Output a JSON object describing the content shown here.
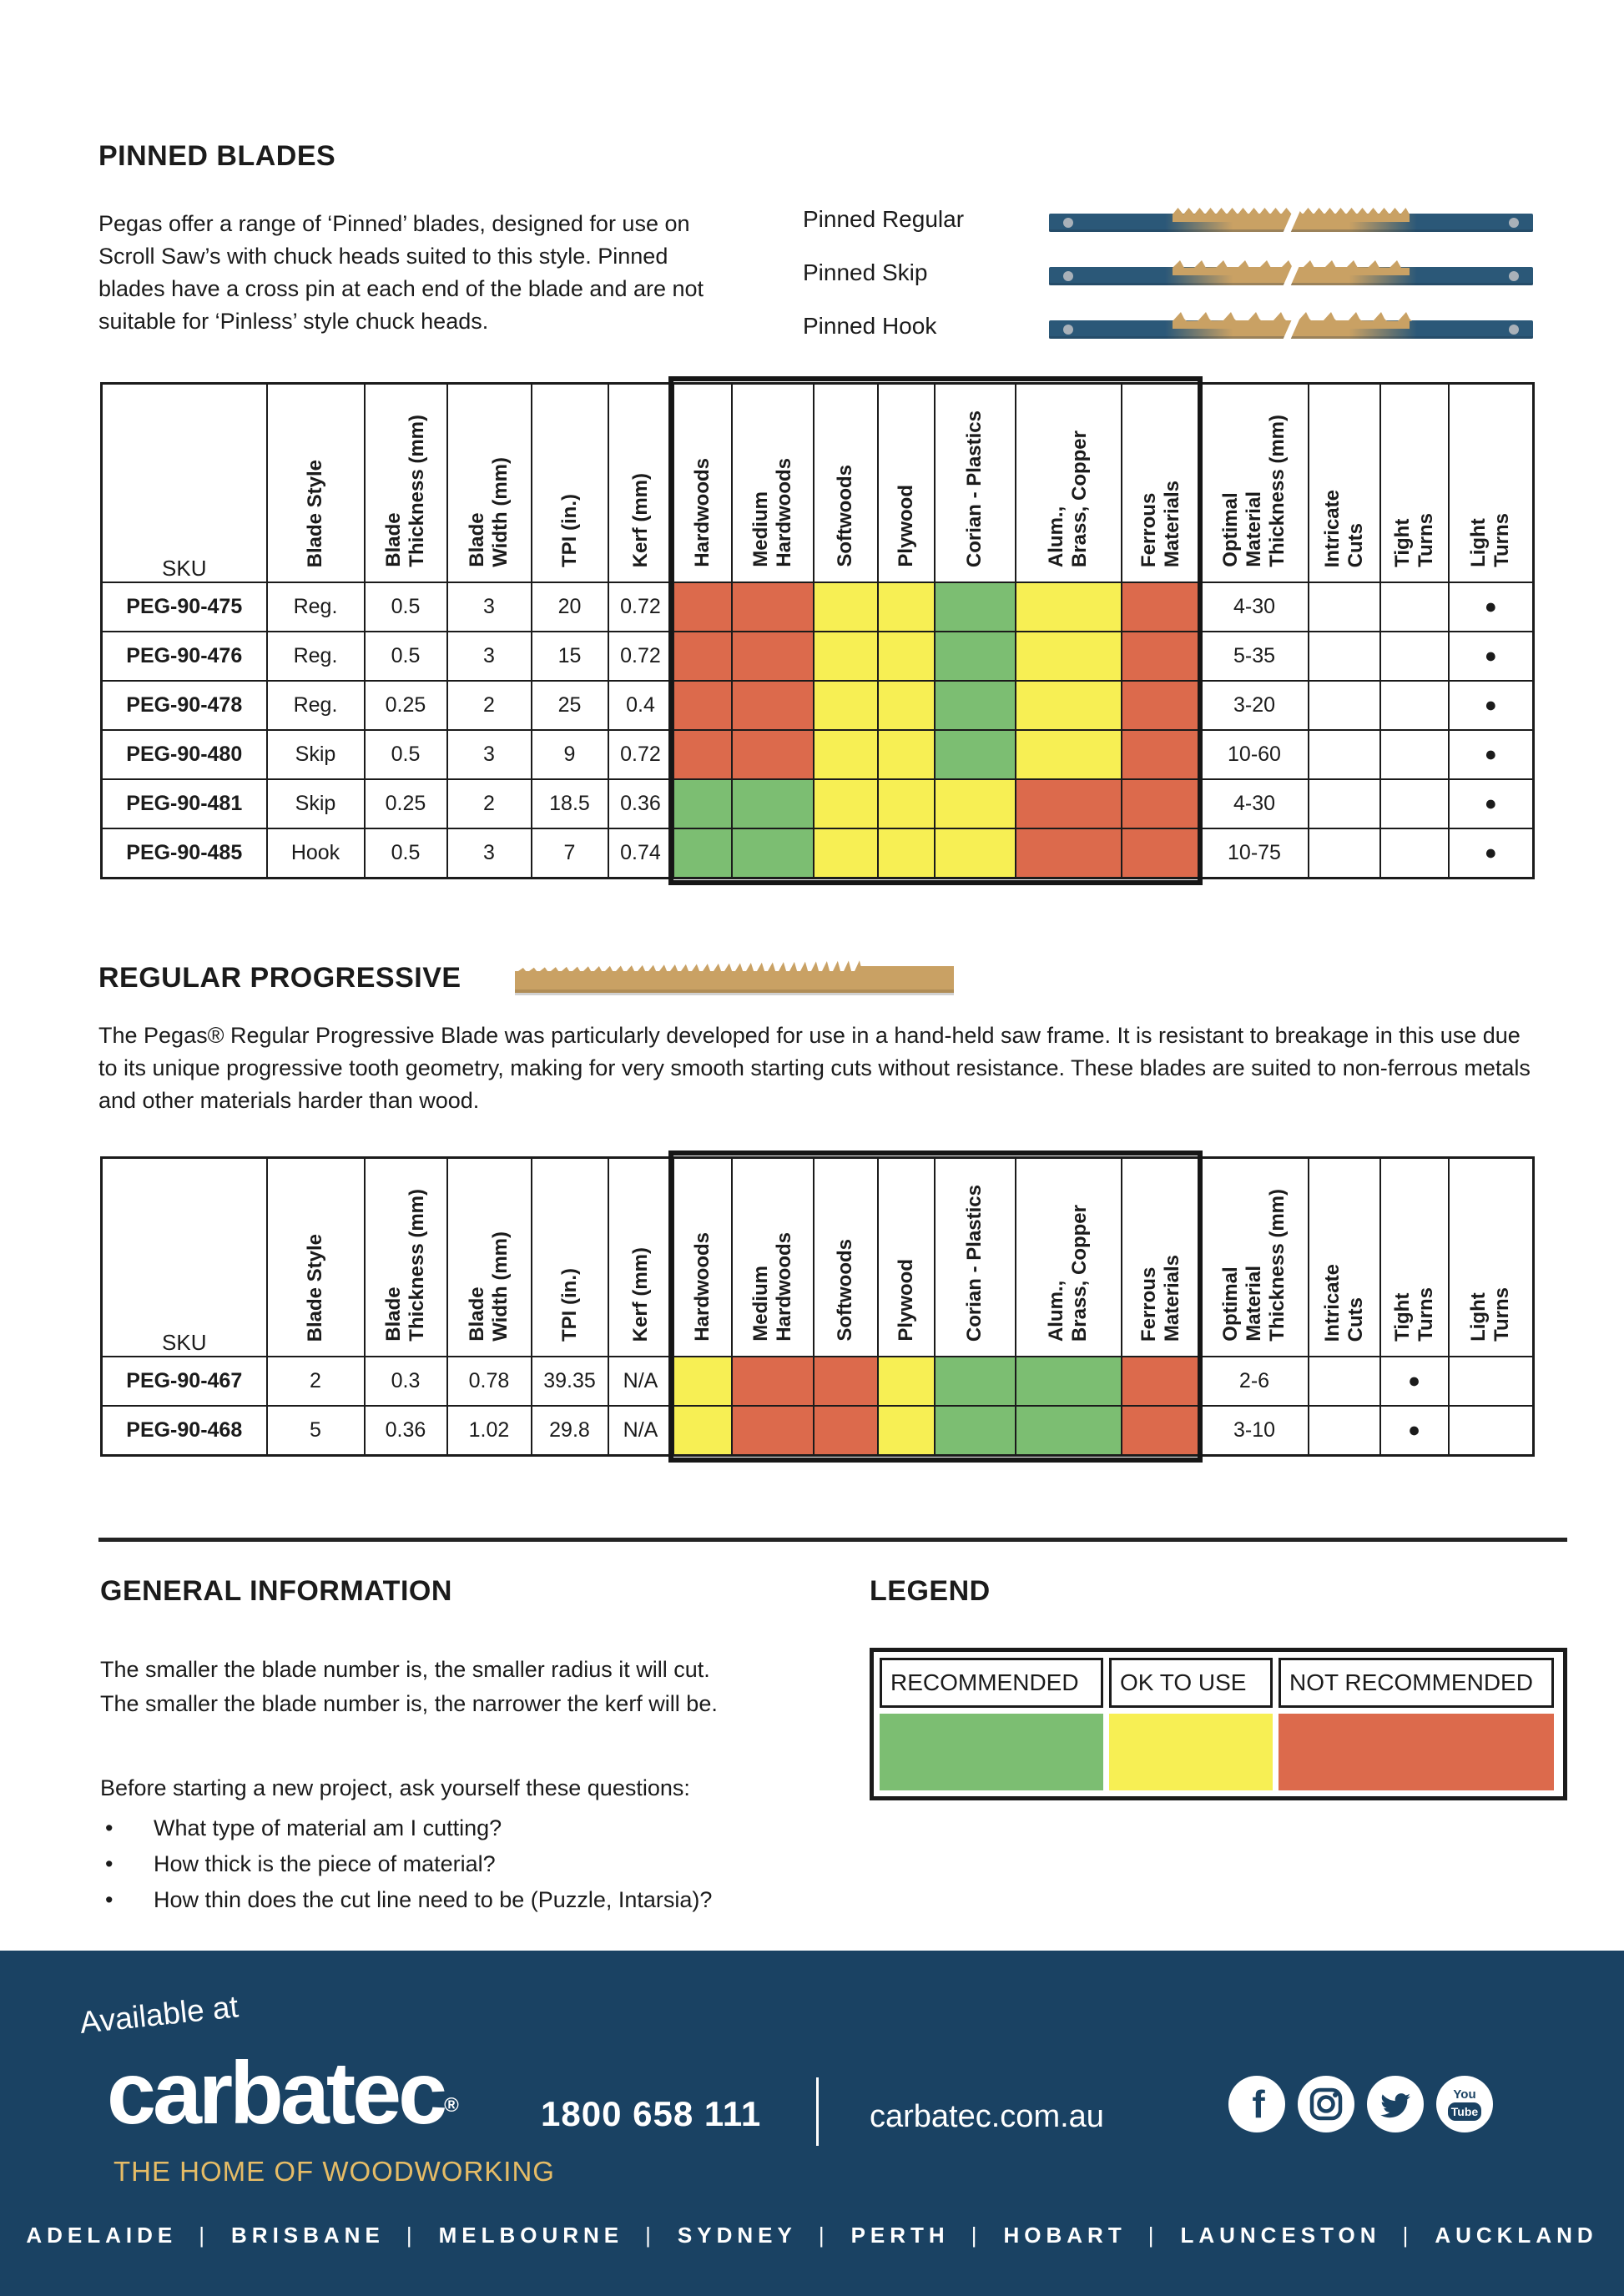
{
  "colors": {
    "rec": "#7cbe72",
    "ok": "#f7ef54",
    "nr": "#dc6a4c",
    "footer_bg": "#1a4263",
    "gold": "#e6bc66",
    "blade_navy": "#2b5878",
    "blade_tan": "#c9a164"
  },
  "pinned": {
    "title": "PINNED BLADES",
    "description": "Pegas offer a range of ‘Pinned’ blades, designed for use on Scroll Saw’s with chuck heads suited to this style. Pinned blades have a cross pin at each end of the blade and are not suitable for ‘Pinless’ style chuck heads.",
    "blade_styles": [
      {
        "label": "Pinned Regular",
        "type": "regular"
      },
      {
        "label": "Pinned Skip",
        "type": "skip"
      },
      {
        "label": "Pinned Hook",
        "type": "hook"
      }
    ]
  },
  "table_columns": [
    "SKU",
    "Blade Style",
    "Blade\nThickness (mm)",
    "Blade\nWidth (mm)",
    "TPI (in.)",
    "Kerf (mm)",
    "Hardwoods",
    "Medium\nHardwoods",
    "Softwoods",
    "Plywood",
    "Corian - Plastics",
    "Alum.,\nBrass, Copper",
    "Ferrous\nMaterials",
    "Optimal\nMaterial\nThickness (mm)",
    "Intricate\nCuts",
    "Tight\nTurns",
    "Light\nTurns"
  ],
  "pinned_table_rows": [
    {
      "sku": "PEG-90-475",
      "style": "Reg.",
      "thickness": "0.5",
      "width": "3",
      "tpi": "20",
      "kerf": "0.72",
      "materials": [
        "nr",
        "nr",
        "ok",
        "ok",
        "rec",
        "ok",
        "nr"
      ],
      "optimal": "4-30",
      "intricate": "",
      "tight": "",
      "light": "●"
    },
    {
      "sku": "PEG-90-476",
      "style": "Reg.",
      "thickness": "0.5",
      "width": "3",
      "tpi": "15",
      "kerf": "0.72",
      "materials": [
        "nr",
        "nr",
        "ok",
        "ok",
        "rec",
        "ok",
        "nr"
      ],
      "optimal": "5-35",
      "intricate": "",
      "tight": "",
      "light": "●"
    },
    {
      "sku": "PEG-90-478",
      "style": "Reg.",
      "thickness": "0.25",
      "width": "2",
      "tpi": "25",
      "kerf": "0.4",
      "materials": [
        "nr",
        "nr",
        "ok",
        "ok",
        "rec",
        "ok",
        "nr"
      ],
      "optimal": "3-20",
      "intricate": "",
      "tight": "",
      "light": "●"
    },
    {
      "sku": "PEG-90-480",
      "style": "Skip",
      "thickness": "0.5",
      "width": "3",
      "tpi": "9",
      "kerf": "0.72",
      "materials": [
        "nr",
        "nr",
        "ok",
        "ok",
        "rec",
        "ok",
        "nr"
      ],
      "optimal": "10-60",
      "intricate": "",
      "tight": "",
      "light": "●"
    },
    {
      "sku": "PEG-90-481",
      "style": "Skip",
      "thickness": "0.25",
      "width": "2",
      "tpi": "18.5",
      "kerf": "0.36",
      "materials": [
        "rec",
        "rec",
        "ok",
        "ok",
        "ok",
        "nr",
        "nr"
      ],
      "optimal": "4-30",
      "intricate": "",
      "tight": "",
      "light": "●"
    },
    {
      "sku": "PEG-90-485",
      "style": "Hook",
      "thickness": "0.5",
      "width": "3",
      "tpi": "7",
      "kerf": "0.74",
      "materials": [
        "rec",
        "rec",
        "ok",
        "ok",
        "ok",
        "nr",
        "nr"
      ],
      "optimal": "10-75",
      "intricate": "",
      "tight": "",
      "light": "●"
    }
  ],
  "progressive": {
    "title": "REGULAR PROGRESSIVE",
    "description": "The Pegas® Regular Progressive Blade was particularly developed for use in a hand-held saw frame. It is resistant to breakage in this use due to its unique progressive tooth geometry, making for very smooth starting cuts without resistance. These blades are suited to non-ferrous metals and other materials harder than wood."
  },
  "progressive_table_rows": [
    {
      "sku": "PEG-90-467",
      "style": "2",
      "thickness": "0.3",
      "width": "0.78",
      "tpi": "39.35",
      "kerf": "N/A",
      "materials": [
        "ok",
        "nr",
        "nr",
        "ok",
        "rec",
        "rec",
        "nr"
      ],
      "optimal": "2-6",
      "intricate": "",
      "tight": "●",
      "light": ""
    },
    {
      "sku": "PEG-90-468",
      "style": "5",
      "thickness": "0.36",
      "width": "1.02",
      "tpi": "29.8",
      "kerf": "N/A",
      "materials": [
        "ok",
        "nr",
        "nr",
        "ok",
        "rec",
        "rec",
        "nr"
      ],
      "optimal": "3-10",
      "intricate": "",
      "tight": "●",
      "light": ""
    }
  ],
  "general_info": {
    "title": "GENERAL INFORMATION",
    "lines": [
      "The smaller the blade number is, the smaller radius it will cut.",
      "The smaller the blade number is, the narrower the kerf will be."
    ],
    "intro": "Before starting a new project, ask yourself these questions:",
    "questions": [
      "What type of material am I cutting?",
      "How thick is the piece of material?",
      "How thin does the cut line need to be (Puzzle, Intarsia)?"
    ]
  },
  "legend": {
    "title": "LEGEND",
    "items": [
      {
        "label": "RECOMMENDED",
        "key": "rec"
      },
      {
        "label": "OK TO USE",
        "key": "ok"
      },
      {
        "label": "NOT RECOMMENDED",
        "key": "nr"
      }
    ]
  },
  "footer": {
    "available_at": "Available at",
    "brand": "carbatec",
    "brand_mark": "®",
    "tagline": "THE HOME OF WOODWORKING",
    "phone": "1800 658 111",
    "website": "carbatec.com.au",
    "cities": [
      "ADELAIDE",
      "BRISBANE",
      "MELBOURNE",
      "SYDNEY",
      "PERTH",
      "HOBART",
      "LAUNCESTON",
      "AUCKLAND"
    ]
  }
}
